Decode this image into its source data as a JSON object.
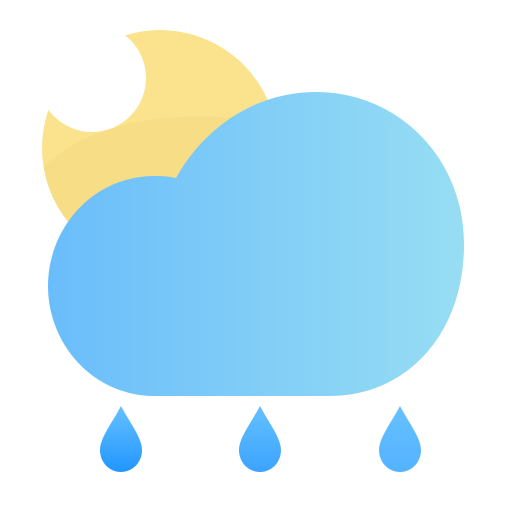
{
  "icon": {
    "name": "night-rain-weather-icon",
    "elements": [
      "crescent-moon-icon",
      "cloud-icon",
      "raindrop-icon",
      "raindrop-icon",
      "raindrop-icon"
    ]
  },
  "colors": {
    "moon": "#FBE38E",
    "moon_shadow": "#F3D97F",
    "cloud_left": "#6ABDFB",
    "cloud_right": "#97DDF3",
    "drop_top": "#65C1FF",
    "drop_bottom_1": "#2196FF",
    "drop_bottom_2": "#3BA3FF",
    "drop_bottom_3": "#55B2FF"
  }
}
